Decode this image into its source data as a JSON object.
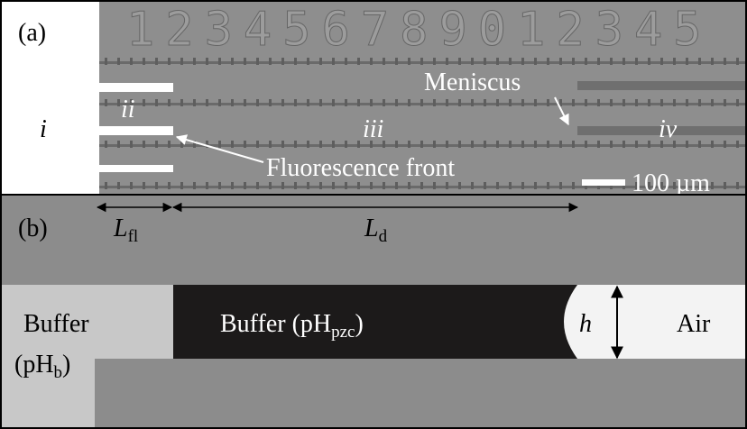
{
  "panel_a": {
    "label": "(a)",
    "ruler_digits": "123456789012345",
    "regions": [
      "i",
      "ii",
      "iii",
      "iv"
    ],
    "meniscus": "Meniscus",
    "fluorescence_front": "Fluorescence front",
    "scale_bar": "100 µm"
  },
  "panel_b": {
    "label": "(b)",
    "length_fl": {
      "symbol": "L",
      "subscript": "fl"
    },
    "length_d": {
      "symbol": "L",
      "subscript": "d"
    },
    "buffer_b": {
      "line1": "Buffer",
      "prefix": "(pH",
      "subscript": "b",
      "suffix": ")"
    },
    "buffer_pzc": {
      "prefix": "Buffer (pH",
      "subscript": "pzc",
      "suffix": ")"
    },
    "height": "h",
    "air": "Air"
  }
}
